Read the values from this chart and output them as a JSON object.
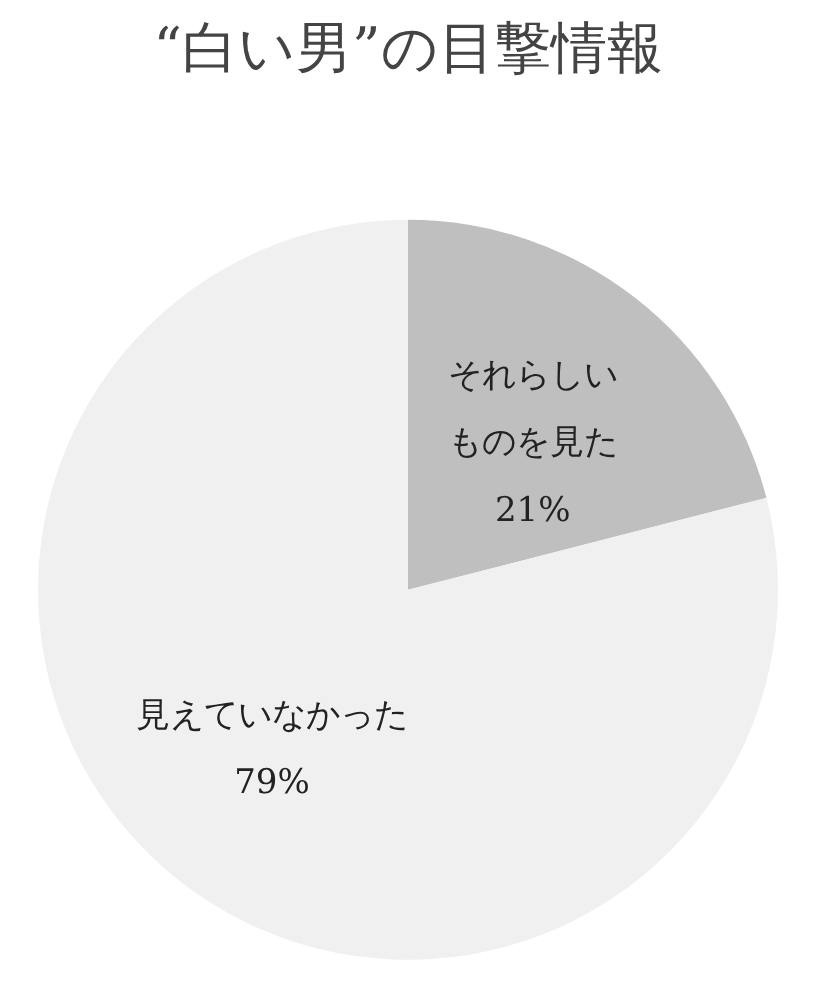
{
  "chart_data": {
    "type": "pie",
    "title": "“白い男”の目撃情報",
    "categories": [
      "それらしいものを見た",
      "見えていなかった"
    ],
    "values": [
      21,
      79
    ],
    "colors": [
      "#bfbfbf",
      "#f0f0f0"
    ],
    "value_labels": [
      "21%",
      "79%"
    ]
  }
}
